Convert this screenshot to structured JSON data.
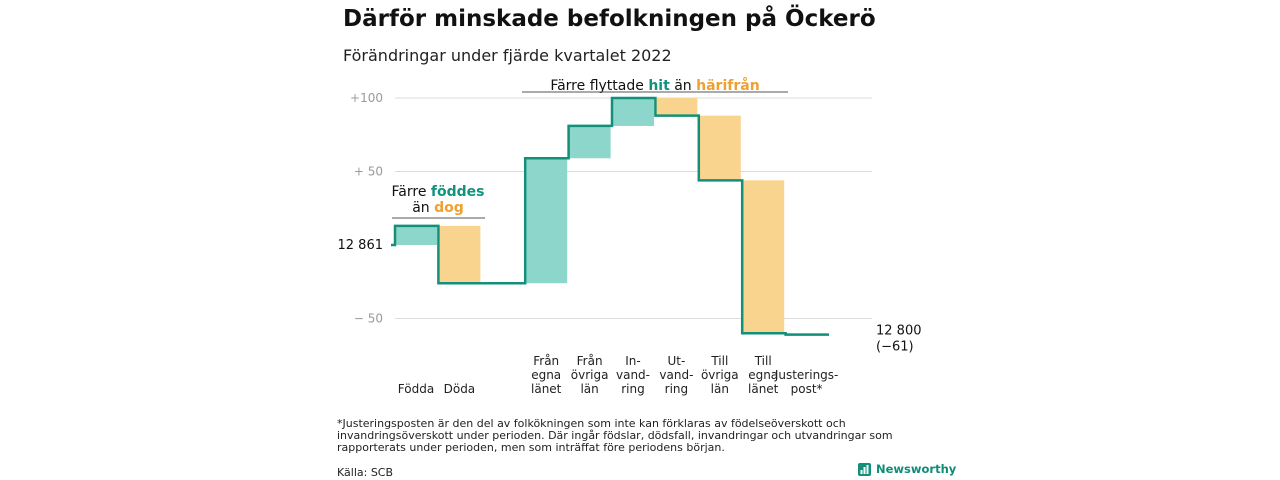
{
  "title": "Därför minskade befolkningen på Öckerö",
  "subtitle": "Förändringar under fjärde kvartalet 2022",
  "colors": {
    "positive": "#8dd6cc",
    "negative": "#f9d48f",
    "line": "#12907a",
    "teal_text": "#13937d",
    "orange_text": "#f0a030",
    "grid": "#dddddd"
  },
  "chart_data": {
    "type": "waterfall",
    "baseline": 12861,
    "baseline_label": "12 861",
    "end_value": 12800,
    "end_label": "12 800",
    "end_change_label": "(−61)",
    "ylim": [
      -61,
      100
    ],
    "y_ticks": [
      {
        "value": 100,
        "label": "+100"
      },
      {
        "value": 50,
        "label": "+ 50"
      },
      {
        "value": -50,
        "label": "− 50"
      }
    ],
    "grid": true,
    "steps": [
      {
        "category": [
          "Födda"
        ],
        "change": 13
      },
      {
        "category": [
          "Döda"
        ],
        "change": -39
      },
      {
        "category": [],
        "change": 0
      },
      {
        "category": [
          "Från",
          "egna",
          "länet"
        ],
        "change": 85
      },
      {
        "category": [
          "Från",
          "övriga",
          "län"
        ],
        "change": 22
      },
      {
        "category": [
          "In-",
          "vand-",
          "ring"
        ],
        "change": 19
      },
      {
        "category": [
          "Ut-",
          "vand-",
          "ring"
        ],
        "change": -12
      },
      {
        "category": [
          "Till",
          "övriga",
          "län"
        ],
        "change": -44
      },
      {
        "category": [
          "Till",
          "egna",
          "länet"
        ],
        "change": -104
      },
      {
        "category": [
          "Justerings-",
          "post*"
        ],
        "change": -1
      }
    ],
    "annotations": [
      {
        "lines": [
          [
            {
              "text": "Färre ",
              "color": "dark"
            },
            {
              "text": "föddes",
              "color": "teal"
            }
          ],
          [
            {
              "text": "än ",
              "color": "dark"
            },
            {
              "text": "dog",
              "color": "orange"
            }
          ]
        ]
      },
      {
        "lines": [
          [
            {
              "text": "Färre flyttade ",
              "color": "dark"
            },
            {
              "text": "hit",
              "color": "teal"
            },
            {
              "text": " än ",
              "color": "dark"
            },
            {
              "text": "härifrån",
              "color": "orange"
            }
          ]
        ]
      }
    ]
  },
  "footnote": "*Justeringsposten är den del av folkökningen som inte kan förklaras av födelseöverskott och invandringsöverskott under perioden. Där ingår födslar, dödsfall, invandringar och utvandringar som rapporterats under perioden, men som inträffat före periodens början.",
  "source": "Källa: SCB",
  "brand": {
    "name": "Newsworthy",
    "icon": "newsworthy-logo-icon"
  }
}
